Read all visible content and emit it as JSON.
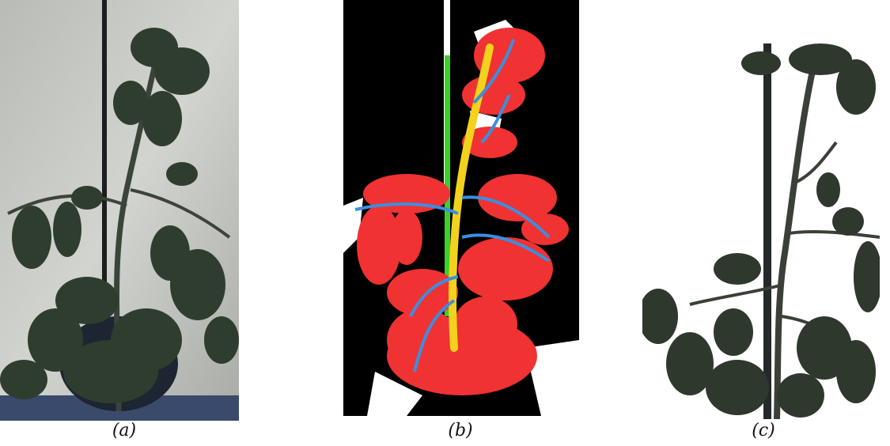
{
  "figure": {
    "panels": [
      {
        "caption": "(a)",
        "description_icon": "photo-plant-icon"
      },
      {
        "caption": "(b)",
        "description_icon": "segmentation-mask-icon"
      },
      {
        "caption": "(c)",
        "description_icon": "masked-plant-icon"
      }
    ]
  },
  "colors": {
    "background_wall": "#c9cbc6",
    "leaf_dark": "#2d3a2c",
    "mask_leaf": "#f03232",
    "mask_branch": "#3a8fe0",
    "mask_stem": "#f2d21c",
    "mask_stake": "#3fcf2a",
    "mask_background": "#000000"
  }
}
